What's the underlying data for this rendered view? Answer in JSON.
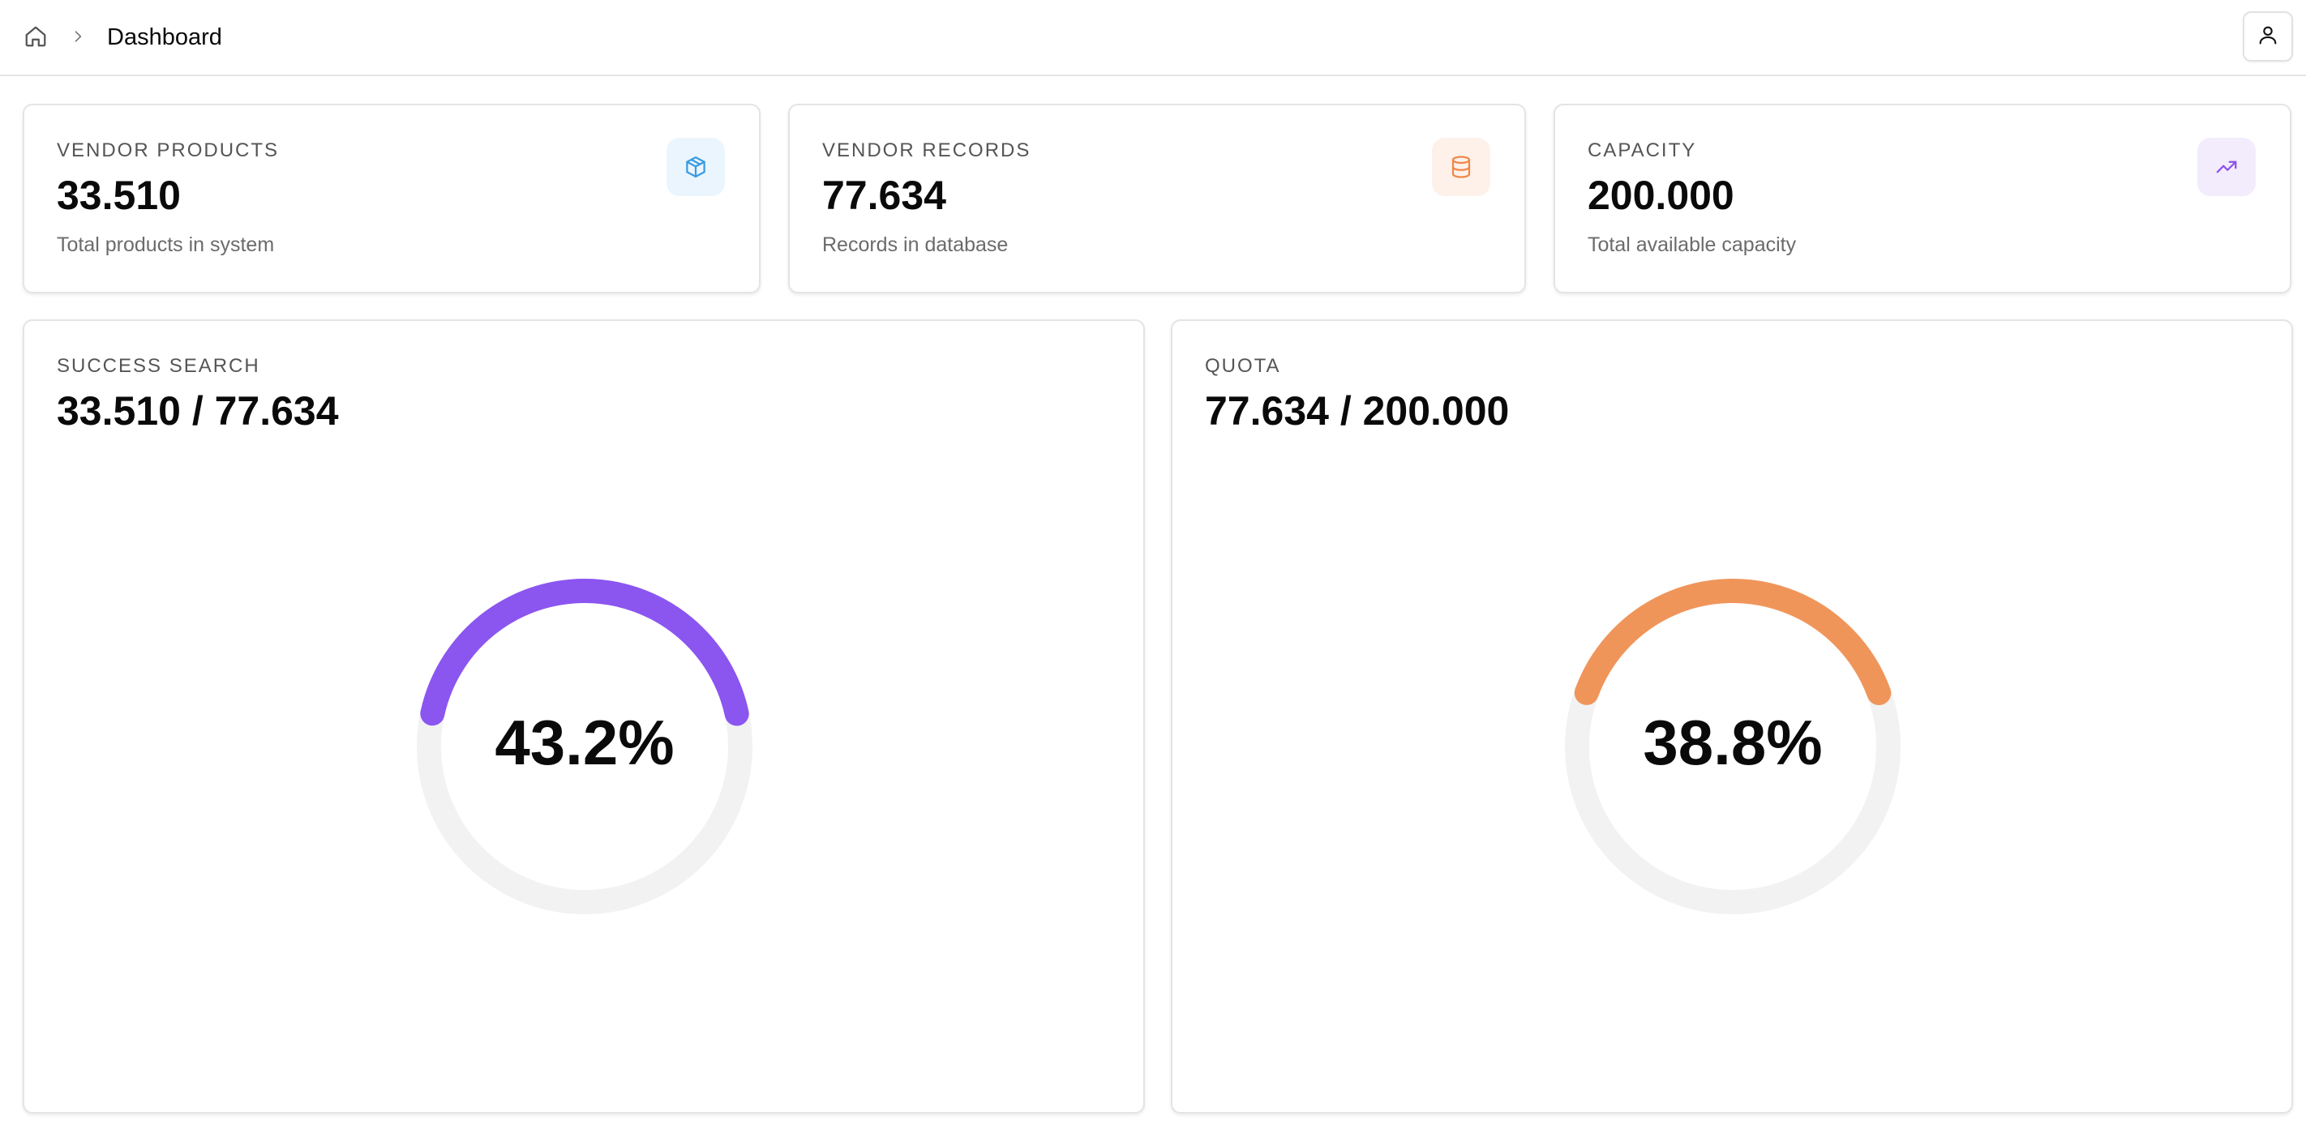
{
  "header": {
    "home_icon": "home-icon",
    "separator_icon": "chevron-right-icon",
    "breadcrumb_current": "Dashboard",
    "user_icon": "user-icon"
  },
  "stats": [
    {
      "label": "VENDOR PRODUCTS",
      "value": "33.510",
      "subtitle": "Total products in system",
      "icon": "package-icon",
      "icon_color": "#3a9be0",
      "icon_bg": "#eaf5fd"
    },
    {
      "label": "VENDOR RECORDS",
      "value": "77.634",
      "subtitle": "Records in database",
      "icon": "database-icon",
      "icon_color": "#f0874a",
      "icon_bg": "#fdf1ea"
    },
    {
      "label": "CAPACITY",
      "value": "200.000",
      "subtitle": "Total available capacity",
      "icon": "trending-up-icon",
      "icon_color": "#8a50e8",
      "icon_bg": "#f2ecfd"
    }
  ],
  "gauges": [
    {
      "label": "SUCCESS SEARCH",
      "ratio": "33.510 / 77.634",
      "percent_text": "43.2%",
      "fraction": 0.432,
      "color": "#8b55f0",
      "track_color": "#f2f2f2"
    },
    {
      "label": "QUOTA",
      "ratio": "77.634 / 200.000",
      "percent_text": "38.8%",
      "fraction": 0.388,
      "color": "#f0955a",
      "track_color": "#f2f2f2"
    }
  ]
}
